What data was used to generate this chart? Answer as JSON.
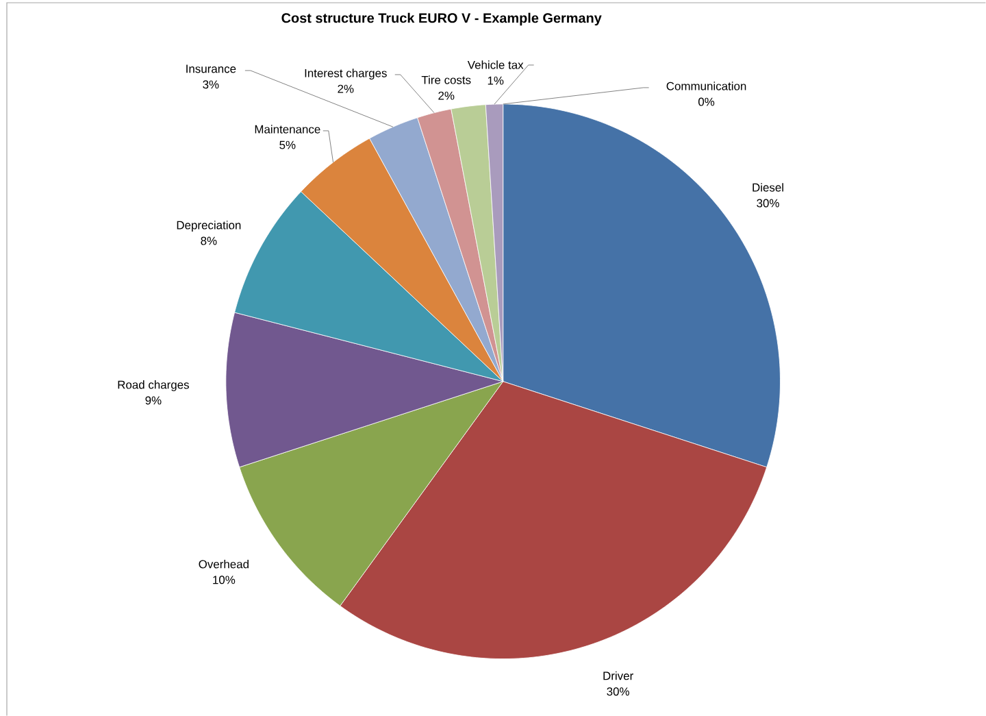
{
  "chart_data": {
    "type": "pie",
    "title": "Cost structure Truck  EURO V - Example Germany",
    "categories": [
      "Diesel",
      "Driver",
      "Overhead",
      "Road charges",
      "Depreciation",
      "Maintenance",
      "Insurance",
      "Interest charges",
      "Tire costs",
      "Vehicle tax",
      "Communication"
    ],
    "values": [
      30,
      30,
      10,
      9,
      8,
      5,
      3,
      2,
      2,
      1,
      0
    ],
    "value_labels": [
      "30%",
      "30%",
      "10%",
      "9%",
      "8%",
      "5%",
      "3%",
      "2%",
      "2%",
      "1%",
      "0%"
    ],
    "colors": [
      "#4572a7",
      "#aa4643",
      "#89a54e",
      "#71588f",
      "#4198af",
      "#db843d",
      "#93a9cf",
      "#d19392",
      "#b9cd96",
      "#a99bbd",
      "#8ec3d4"
    ]
  }
}
